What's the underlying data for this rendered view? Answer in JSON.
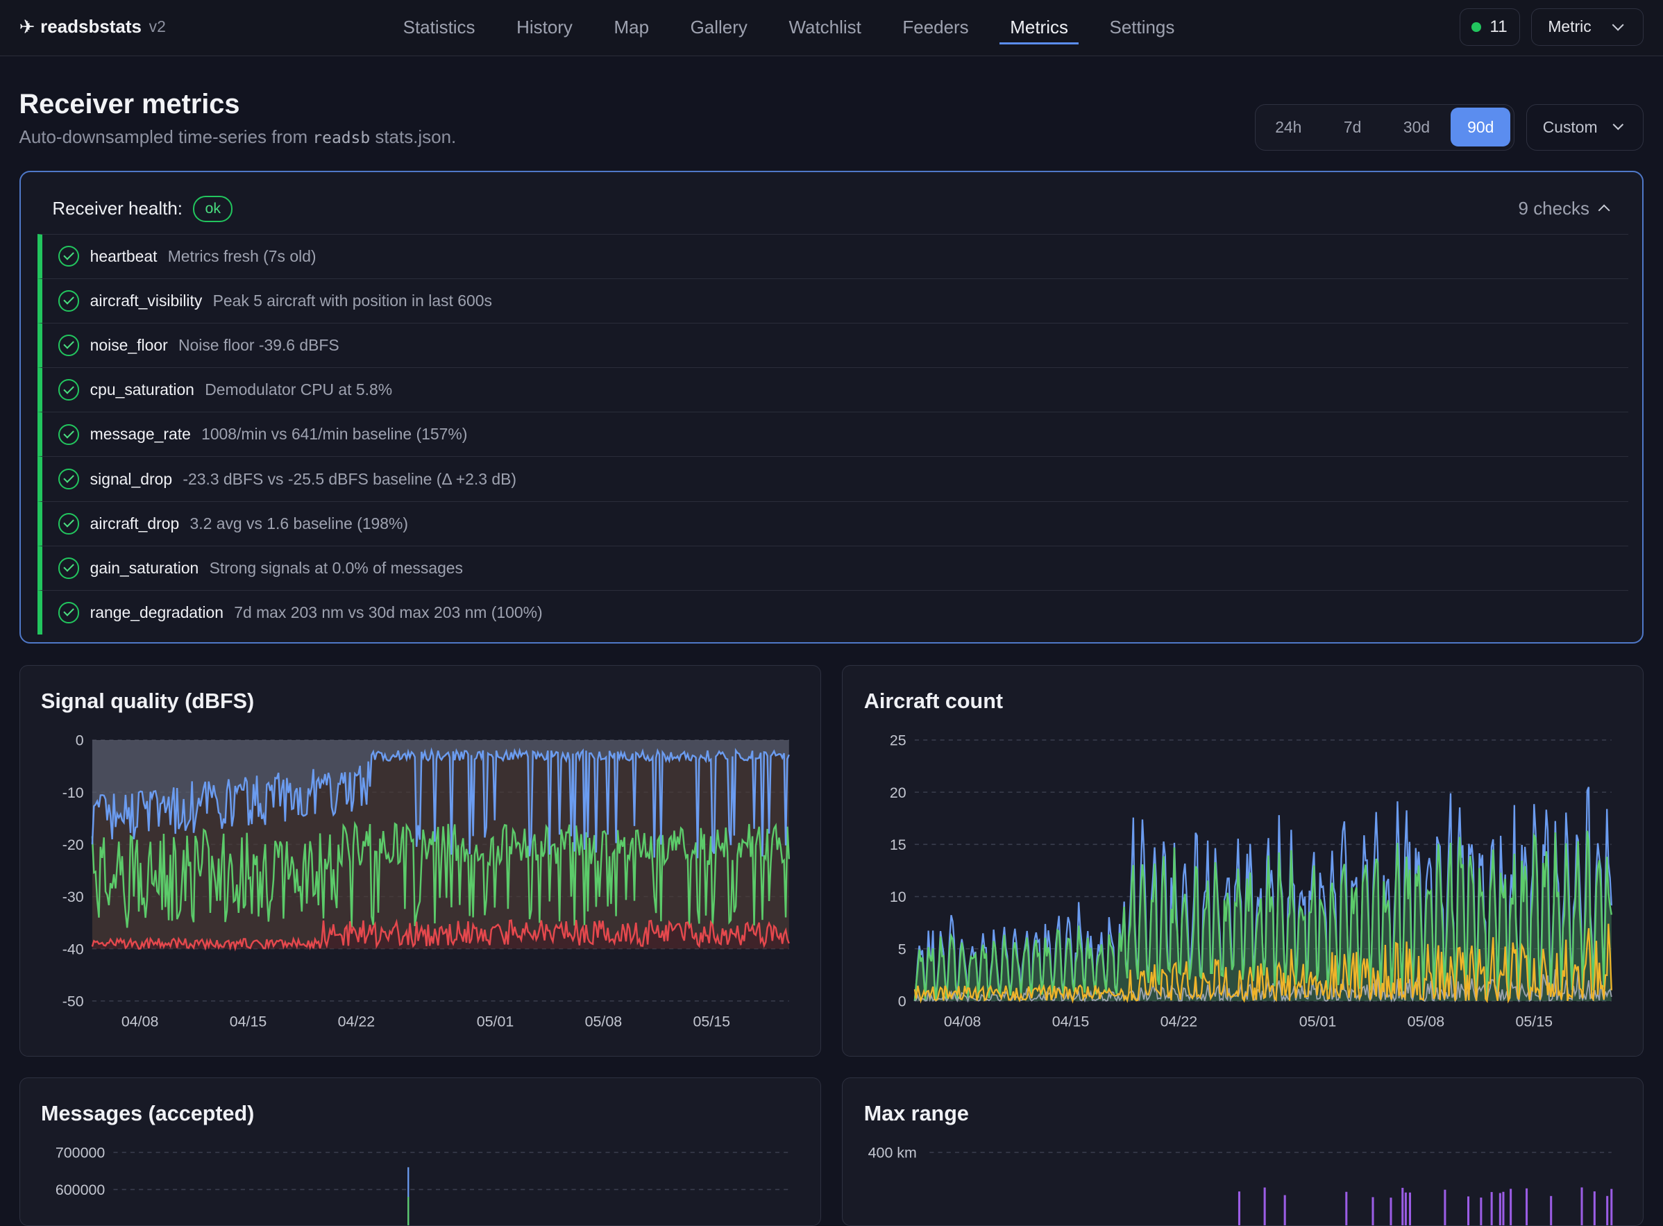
{
  "app": {
    "name": "readsbstats",
    "version": "v2"
  },
  "nav": [
    {
      "label": "Statistics"
    },
    {
      "label": "History"
    },
    {
      "label": "Map"
    },
    {
      "label": "Gallery"
    },
    {
      "label": "Watchlist"
    },
    {
      "label": "Feeders"
    },
    {
      "label": "Metrics",
      "active": true
    },
    {
      "label": "Settings"
    }
  ],
  "status": {
    "count": "11",
    "color": "#22c55e"
  },
  "units": {
    "selected": "Metric"
  },
  "header": {
    "title": "Receiver metrics",
    "subtitle_pre": "Auto-downsampled time-series from",
    "subtitle_code": "readsb",
    "subtitle_post": "stats.json."
  },
  "ranges": [
    {
      "label": "24h"
    },
    {
      "label": "7d"
    },
    {
      "label": "30d"
    },
    {
      "label": "90d",
      "active": true
    }
  ],
  "custom_label": "Custom",
  "health": {
    "label": "Receiver health:",
    "status": "ok",
    "checks_label": "9 checks",
    "checks": [
      {
        "name": "heartbeat",
        "detail": "Metrics fresh (7s old)"
      },
      {
        "name": "aircraft_visibility",
        "detail": "Peak 5 aircraft with position in last 600s"
      },
      {
        "name": "noise_floor",
        "detail": "Noise floor -39.6 dBFS"
      },
      {
        "name": "cpu_saturation",
        "detail": "Demodulator CPU at 5.8%"
      },
      {
        "name": "message_rate",
        "detail": "1008/min vs 641/min baseline (157%)"
      },
      {
        "name": "signal_drop",
        "detail": "-23.3 dBFS vs -25.5 dBFS baseline (Δ +2.3 dB)"
      },
      {
        "name": "aircraft_drop",
        "detail": "3.2 avg vs 1.6 baseline (198%)"
      },
      {
        "name": "gain_saturation",
        "detail": "Strong signals at 0.0% of messages"
      },
      {
        "name": "range_degradation",
        "detail": "7d max 203 nm vs 30d max 203 nm (100%)"
      }
    ]
  },
  "chart_data": [
    {
      "type": "line",
      "title": "Signal quality (dBFS)",
      "ylim": [
        -50,
        0
      ],
      "yticks": [
        "0",
        "-10",
        "-20",
        "-30",
        "-40",
        "-50"
      ],
      "xticks": [
        "04/08",
        "04/15",
        "04/22",
        "05/01",
        "05/08",
        "05/15"
      ],
      "x_range": [
        "04/05",
        "05/19"
      ],
      "series": [
        {
          "color": "#6b9cf0",
          "approx": {
            "start": -17,
            "end": -1
          }
        },
        {
          "color": "#5ccb6a",
          "approx": {
            "start": -27,
            "end": -16
          }
        },
        {
          "color": "#e5484d",
          "approx": {
            "start": -39,
            "end": -36
          }
        }
      ]
    },
    {
      "type": "area",
      "title": "Aircraft count",
      "ylim": [
        0,
        25
      ],
      "yticks": [
        "25",
        "20",
        "15",
        "10",
        "5",
        "0"
      ],
      "xticks": [
        "04/08",
        "04/15",
        "04/22",
        "05/01",
        "05/08",
        "05/15"
      ],
      "x_range": [
        "04/05",
        "05/19"
      ],
      "series": [
        {
          "color": "#6b9cf0",
          "approx_peak": 20.5
        },
        {
          "color": "#5ccb6a",
          "approx_peak": 17
        },
        {
          "color": "#9ca3af",
          "approx_peak": 5
        },
        {
          "color": "#f0b429",
          "approx_peak": 10
        }
      ]
    },
    {
      "type": "line",
      "title": "Messages (accepted)",
      "yticks": [
        "700000",
        "600000"
      ],
      "series": [
        {
          "color": "#6b9cf0"
        },
        {
          "color": "#5ccb6a"
        }
      ]
    },
    {
      "type": "bar",
      "title": "Max range",
      "yticks": [
        "400 km"
      ],
      "series": [
        {
          "color": "#9b5de5"
        }
      ]
    }
  ]
}
